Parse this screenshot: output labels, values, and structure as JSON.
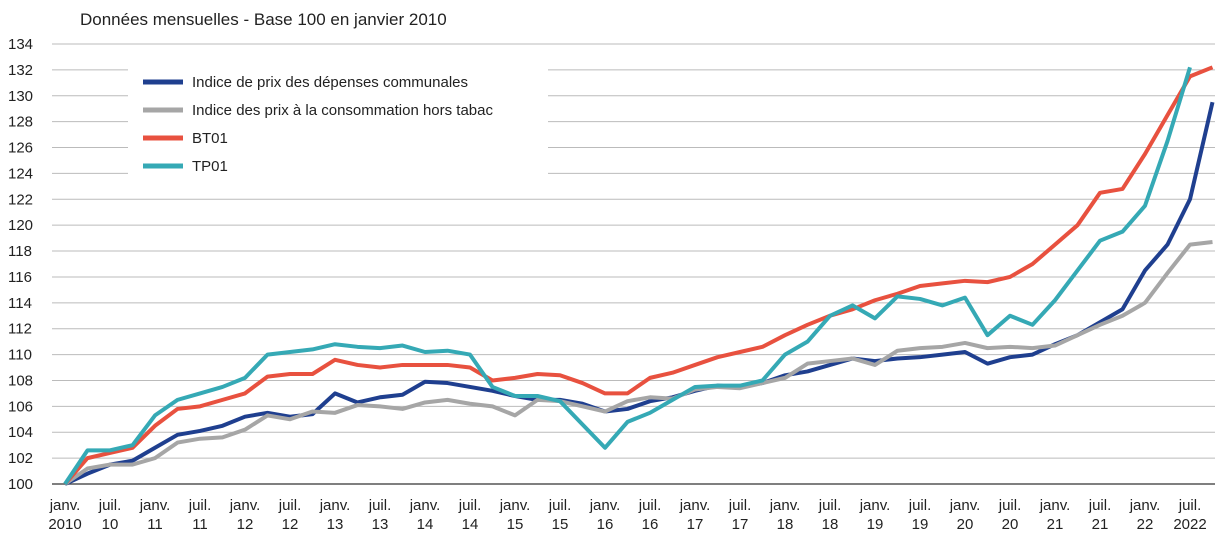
{
  "chart_data": {
    "type": "line",
    "title": "Données mensuelles - Base 100 en janvier 2010",
    "categories": [
      "janv.\n2010",
      null,
      "juil.\n10",
      null,
      "janv.\n11",
      null,
      "juil.\n11",
      null,
      "janv.\n12",
      null,
      "juil.\n12",
      null,
      "janv.\n13",
      null,
      "juil.\n13",
      null,
      "janv.\n14",
      null,
      "juil.\n14",
      null,
      "janv.\n15",
      null,
      "juil.\n15",
      null,
      "janv.\n16",
      null,
      "juil.\n16",
      null,
      "janv.\n17",
      null,
      "juil.\n17",
      null,
      "janv.\n18",
      null,
      "juil.\n18",
      null,
      "janv.\n19",
      null,
      "juil.\n19",
      null,
      "janv.\n20",
      null,
      "juil.\n20",
      null,
      "janv.\n21",
      null,
      "juil.\n21",
      null,
      "janv.\n22",
      null,
      "juil.\n2022",
      null
    ],
    "series": [
      {
        "name": "Indice de prix des dépenses communales",
        "color": "#1f3f8f",
        "values": [
          100,
          100.8,
          101.5,
          101.8,
          102.8,
          103.8,
          104.1,
          104.5,
          105.2,
          105.5,
          105.2,
          105.4,
          107.0,
          106.3,
          106.7,
          106.9,
          107.9,
          107.8,
          107.5,
          107.2,
          106.8,
          106.5,
          106.5,
          106.2,
          105.6,
          105.8,
          106.4,
          106.7,
          107.2,
          107.6,
          107.5,
          107.8,
          108.4,
          108.7,
          109.2,
          109.7,
          109.5,
          109.7,
          109.8,
          110.0,
          110.2,
          109.3,
          109.8,
          110.0,
          110.8,
          111.5,
          112.5,
          113.5,
          116.5,
          118.5,
          122.0,
          129.5
        ]
      },
      {
        "name": "Indice des prix à la consommation hors tabac",
        "color": "#a6a6a6",
        "values": [
          100,
          101.2,
          101.5,
          101.5,
          102.0,
          103.2,
          103.5,
          103.6,
          104.2,
          105.3,
          105.0,
          105.6,
          105.5,
          106.1,
          106.0,
          105.8,
          106.3,
          106.5,
          106.2,
          106.0,
          105.3,
          106.5,
          106.4,
          106.0,
          105.6,
          106.4,
          106.7,
          106.6,
          107.3,
          107.5,
          107.4,
          107.8,
          108.2,
          109.3,
          109.5,
          109.7,
          109.2,
          110.3,
          110.5,
          110.6,
          110.9,
          110.5,
          110.6,
          110.5,
          110.7,
          111.5,
          112.3,
          113.0,
          114.0,
          116.3,
          118.5,
          118.7
        ]
      },
      {
        "name": "BT01",
        "color": "#e8513f",
        "values": [
          100,
          102.0,
          102.4,
          102.8,
          104.5,
          105.8,
          106.0,
          106.5,
          107.0,
          108.3,
          108.5,
          108.5,
          109.6,
          109.2,
          109.0,
          109.2,
          109.2,
          109.2,
          109.0,
          108.0,
          108.2,
          108.5,
          108.4,
          107.8,
          107.0,
          107.0,
          108.2,
          108.6,
          109.2,
          109.8,
          110.2,
          110.6,
          111.5,
          112.3,
          113.0,
          113.5,
          114.2,
          114.7,
          115.3,
          115.5,
          115.7,
          115.6,
          116.0,
          117.0,
          118.5,
          120.0,
          122.5,
          122.8,
          125.5,
          128.5,
          131.5,
          132.2
        ]
      },
      {
        "name": "TP01",
        "color": "#35a9b5",
        "values": [
          100,
          102.6,
          102.6,
          103.0,
          105.3,
          106.5,
          107.0,
          107.5,
          108.2,
          110.0,
          110.2,
          110.4,
          110.8,
          110.6,
          110.5,
          110.7,
          110.2,
          110.3,
          110.0,
          107.5,
          106.8,
          106.8,
          106.4,
          104.6,
          102.8,
          104.8,
          105.5,
          106.5,
          107.5,
          107.6,
          107.6,
          108.0,
          110.0,
          111.0,
          113.0,
          113.8,
          112.8,
          114.5,
          114.3,
          113.8,
          114.4,
          111.5,
          113.0,
          112.3,
          114.2,
          116.5,
          118.8,
          119.5,
          121.5,
          126.5,
          132.2,
          null
        ]
      }
    ],
    "ylim": [
      100,
      134
    ],
    "yticks": [
      100,
      102,
      104,
      106,
      108,
      110,
      112,
      114,
      116,
      118,
      120,
      122,
      124,
      126,
      128,
      130,
      132,
      134
    ],
    "grid": true,
    "legend": "upper left"
  }
}
